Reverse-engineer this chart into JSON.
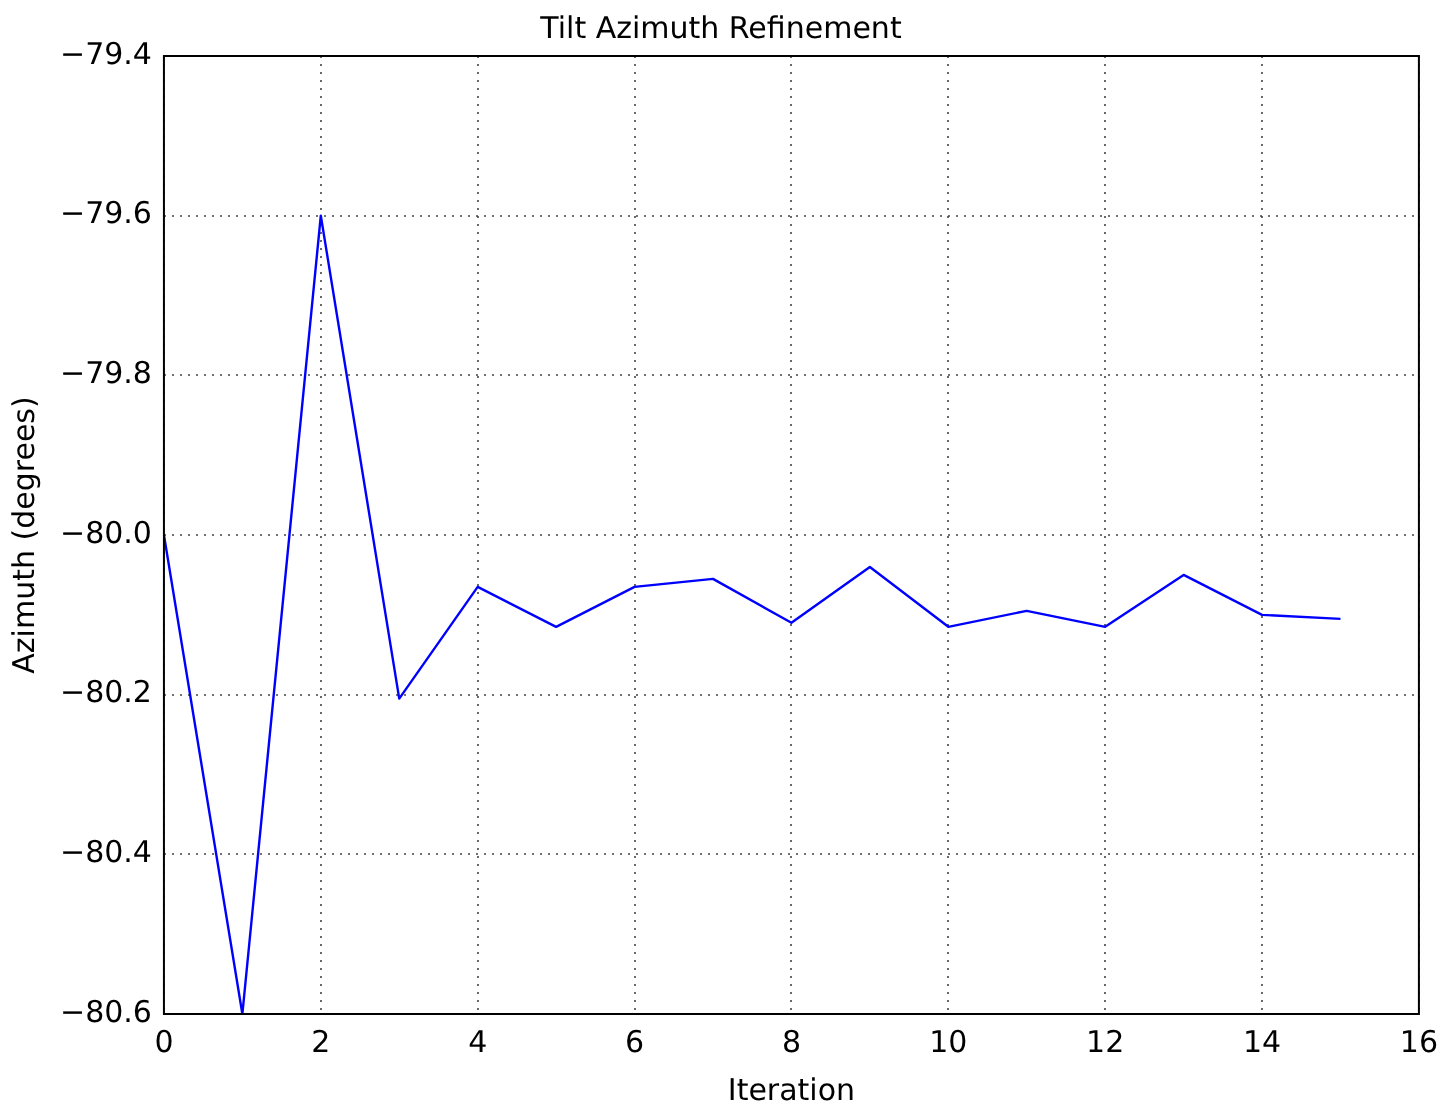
{
  "chart_data": {
    "type": "line",
    "title": "Tilt Azimuth Refinement",
    "xlabel": "Iteration",
    "ylabel": "Azimuth (degrees)",
    "x": [
      0,
      1,
      2,
      3,
      4,
      5,
      6,
      7,
      8,
      9,
      10,
      11,
      12,
      13,
      14,
      15
    ],
    "series": [
      {
        "color": "#0000ff",
        "values": [
          -80.0,
          -80.6,
          -79.6,
          -80.205,
          -80.065,
          -80.115,
          -80.065,
          -80.055,
          -80.11,
          -80.04,
          -80.115,
          -80.095,
          -80.115,
          -80.05,
          -80.1,
          -80.105
        ]
      }
    ],
    "xlim": [
      0,
      16
    ],
    "xticks": [
      0,
      2,
      4,
      6,
      8,
      10,
      12,
      14,
      16
    ],
    "ylim": [
      -80.6,
      -79.4
    ],
    "yticks": [
      {
        "value": -80.6,
        "label": "−80.6"
      },
      {
        "value": -80.4,
        "label": "−80.4"
      },
      {
        "value": -80.2,
        "label": "−80.2"
      },
      {
        "value": -80.0,
        "label": "−80.0"
      },
      {
        "value": -79.8,
        "label": "−79.8"
      },
      {
        "value": -79.6,
        "label": "−79.6"
      },
      {
        "value": -79.4,
        "label": "−79.4"
      }
    ],
    "grid": true,
    "line_style": "solid"
  }
}
